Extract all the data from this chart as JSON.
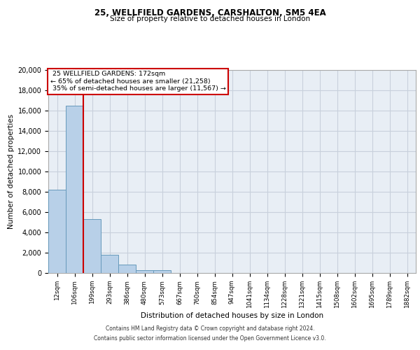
{
  "title1": "25, WELLFIELD GARDENS, CARSHALTON, SM5 4EA",
  "title2": "Size of property relative to detached houses in London",
  "xlabel": "Distribution of detached houses by size in London",
  "ylabel": "Number of detached properties",
  "bar_labels": [
    "12sqm",
    "106sqm",
    "199sqm",
    "293sqm",
    "386sqm",
    "480sqm",
    "573sqm",
    "667sqm",
    "760sqm",
    "854sqm",
    "947sqm",
    "1041sqm",
    "1134sqm",
    "1228sqm",
    "1321sqm",
    "1415sqm",
    "1508sqm",
    "1602sqm",
    "1695sqm",
    "1789sqm",
    "1882sqm"
  ],
  "bar_values": [
    8200,
    16500,
    5300,
    1800,
    800,
    300,
    300,
    0,
    0,
    0,
    0,
    0,
    0,
    0,
    0,
    0,
    0,
    0,
    0,
    0,
    0
  ],
  "bar_color": "#b8d0e8",
  "bar_edge_color": "#6699bb",
  "property_label": "25 WELLFIELD GARDENS: 172sqm",
  "pct_smaller": 65,
  "num_smaller": 21258,
  "pct_larger": 35,
  "num_larger": 11567,
  "vline_color": "#cc0000",
  "annotation_box_color": "#ffffff",
  "annotation_box_edge": "#cc0000",
  "ylim": [
    0,
    20000
  ],
  "yticks": [
    0,
    2000,
    4000,
    6000,
    8000,
    10000,
    12000,
    14000,
    16000,
    18000,
    20000
  ],
  "footer1": "Contains HM Land Registry data © Crown copyright and database right 2024.",
  "footer2": "Contains public sector information licensed under the Open Government Licence v3.0.",
  "grid_color": "#c8d0dc",
  "bg_color": "#e8eef5"
}
